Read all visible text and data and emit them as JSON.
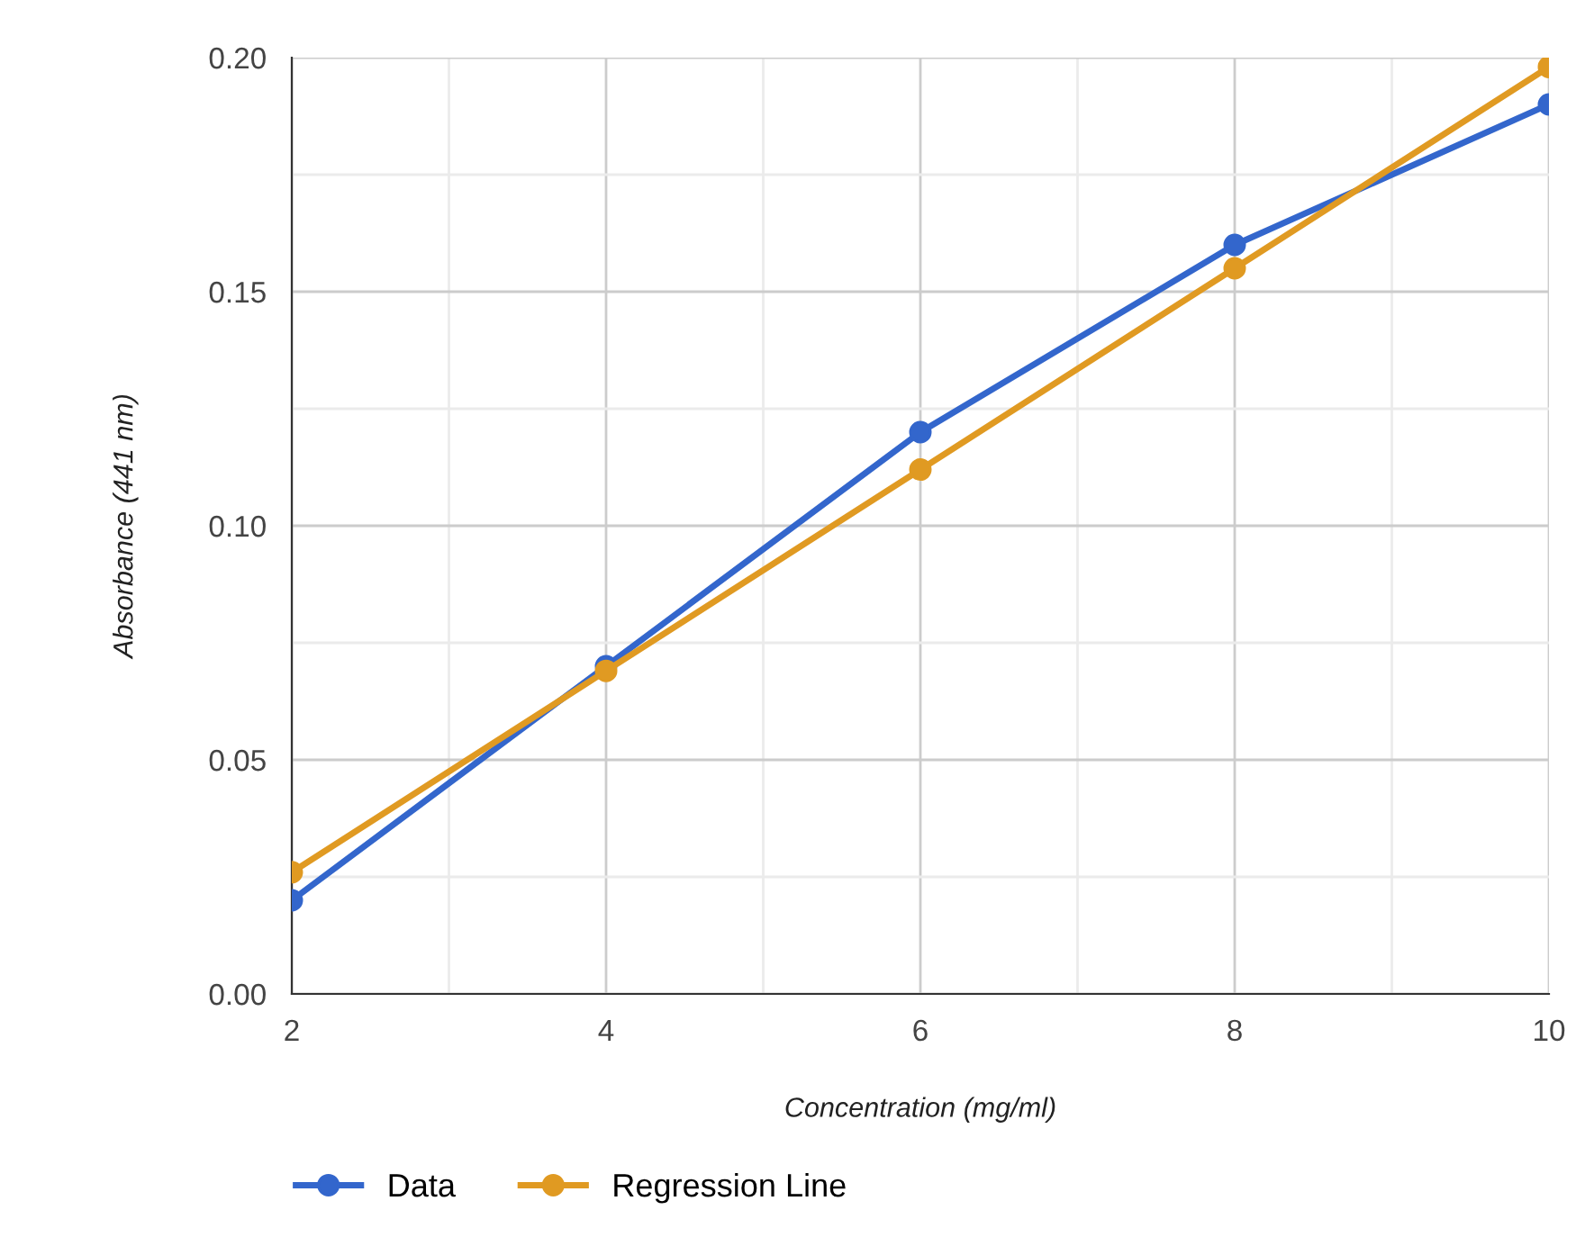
{
  "chart_data": {
    "type": "line",
    "xlabel": "Concentration (mg/ml)",
    "ylabel": "Absorbance (441 nm)",
    "x": [
      2,
      4,
      6,
      8,
      10
    ],
    "series": [
      {
        "name": "Data",
        "color": "#3366cc",
        "values": [
          0.02,
          0.07,
          0.12,
          0.16,
          0.19
        ]
      },
      {
        "name": "Regression Line",
        "color": "#e09a22",
        "values": [
          0.026,
          0.069,
          0.112,
          0.155,
          0.198
        ]
      }
    ],
    "xlim": [
      2,
      10
    ],
    "xticks": [
      2,
      {
        "value": 3,
        "label": null
      },
      4,
      {
        "value": 5,
        "label": null
      },
      6,
      {
        "value": 7,
        "label": null
      },
      8,
      {
        "value": 9,
        "label": null
      },
      10
    ],
    "ylim": [
      0,
      0.2
    ],
    "yticks": [
      {
        "value": 0,
        "label": "0.00"
      },
      {
        "value": 0.025,
        "label": null
      },
      {
        "value": 0.05,
        "label": "0.05"
      },
      {
        "value": 0.075,
        "label": null
      },
      {
        "value": 0.1,
        "label": "0.10"
      },
      {
        "value": 0.125,
        "label": null
      },
      {
        "value": 0.15,
        "label": "0.15"
      },
      {
        "value": 0.175,
        "label": null
      },
      {
        "value": 0.2,
        "label": "0.20"
      }
    ],
    "grid": true,
    "legend": "bottom",
    "marker": "circle",
    "line_style": "solid"
  }
}
